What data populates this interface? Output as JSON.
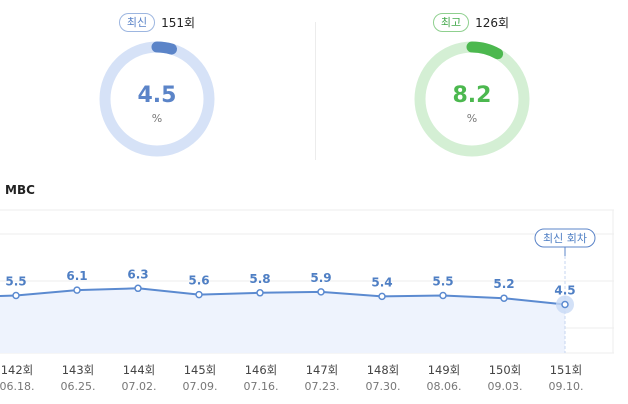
{
  "summary": {
    "latest": {
      "badge": "최신",
      "episode": "151회",
      "value": "4.5",
      "unit": "%",
      "fraction": 0.045,
      "color": "#5b84c8",
      "track_color": "#d6e2f7"
    },
    "best": {
      "badge": "최고",
      "episode": "126회",
      "value": "8.2",
      "unit": "%",
      "fraction": 0.082,
      "color": "#4cb84f",
      "track_color": "#d4efd4"
    }
  },
  "channel": "MBC",
  "chart_data": {
    "type": "area",
    "categories": [
      "142회",
      "143회",
      "144회",
      "145회",
      "146회",
      "147회",
      "148회",
      "149회",
      "150회",
      "151회"
    ],
    "dates": [
      "06.18.",
      "06.25.",
      "07.02.",
      "07.09.",
      "07.16.",
      "07.23.",
      "07.30.",
      "08.06.",
      "09.03.",
      "09.10."
    ],
    "values": [
      5.5,
      6.1,
      6.3,
      5.6,
      5.8,
      5.9,
      5.4,
      5.5,
      5.2,
      4.5
    ],
    "value_labels": [
      "5.5",
      "6.1",
      "6.3",
      "5.6",
      "5.8",
      "5.9",
      "5.4",
      "5.5",
      "5.2",
      "4.5"
    ],
    "ylim": [
      0,
      10
    ],
    "grid": true,
    "line_color": "#5b8ad0",
    "fill_color": "#eef3fd",
    "latest_callout": "최신 회차"
  }
}
